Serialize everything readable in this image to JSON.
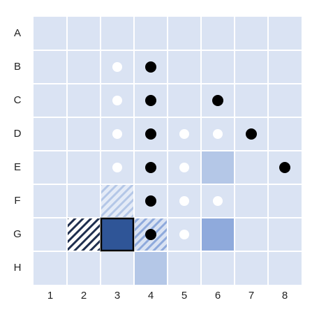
{
  "board": {
    "rows": [
      "A",
      "B",
      "C",
      "D",
      "E",
      "F",
      "G",
      "H"
    ],
    "columns": [
      "1",
      "2",
      "3",
      "4",
      "5",
      "6",
      "7",
      "8"
    ]
  }
}
